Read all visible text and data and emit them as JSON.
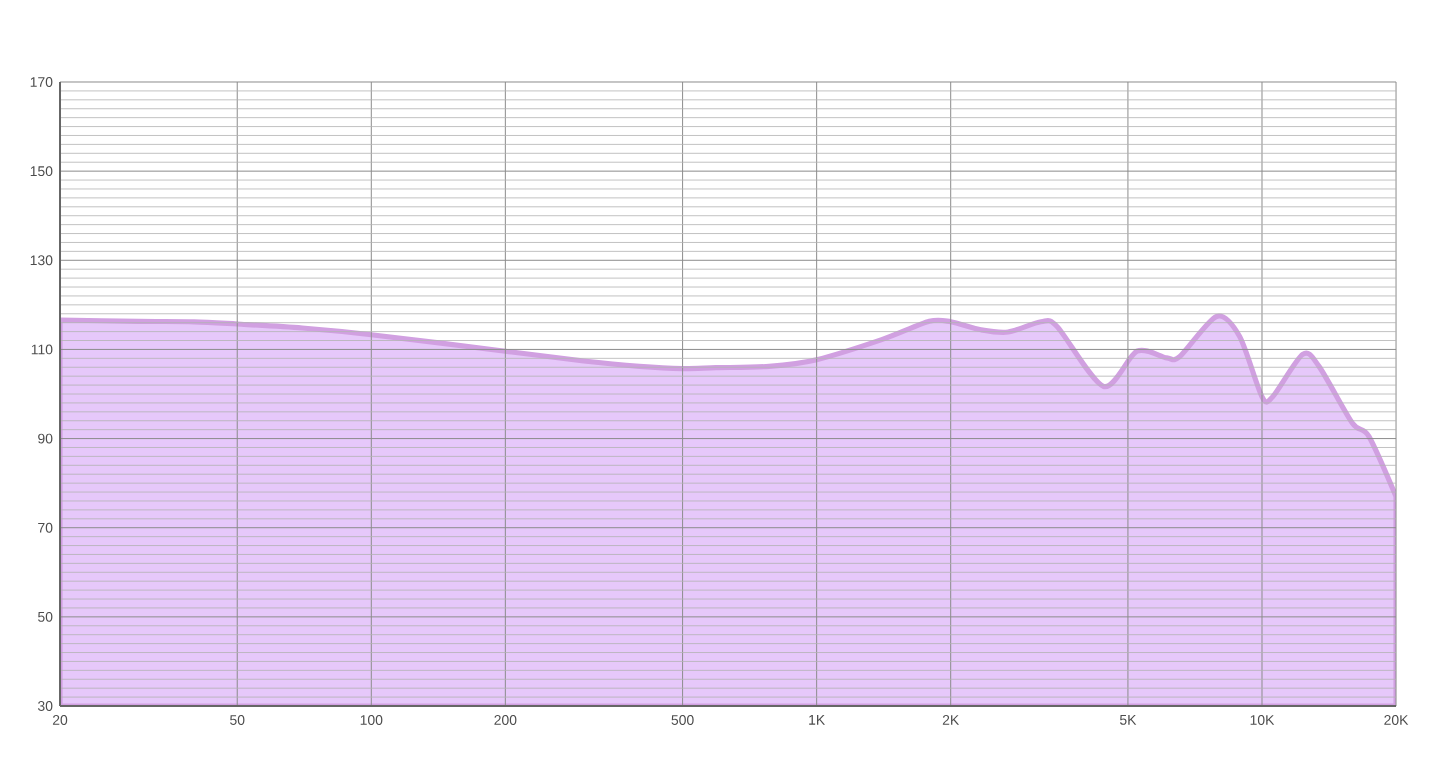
{
  "chart_data": {
    "type": "area",
    "log": "x",
    "x": [
      20,
      30,
      40,
      50,
      70,
      100,
      200,
      300,
      400,
      500,
      594,
      782,
      1000,
      1400,
      1790,
      2000,
      2340,
      2690,
      3190,
      3470,
      4410,
      5240,
      6110,
      6540,
      7910,
      8910,
      10000,
      10570,
      12340,
      13430,
      15950,
      17380,
      20000
    ],
    "series": [
      {
        "color": "#e6c8fa",
        "values": [
          116.6,
          116.3,
          116.2,
          115.7,
          114.8,
          113.3,
          109.6,
          107.4,
          106.2,
          105.7,
          105.9,
          106.2,
          107.7,
          112.2,
          116.3,
          116.2,
          114.4,
          113.9,
          116.2,
          115.1,
          101.7,
          109.6,
          108.1,
          108.4,
          117.4,
          112.9,
          99.4,
          99.4,
          108.9,
          106.2,
          93.5,
          90.5,
          77.0
        ]
      }
    ],
    "xlim": [
      20,
      20000
    ],
    "ylim": [
      30,
      170
    ],
    "xticks": [
      20,
      50,
      100,
      200,
      500,
      {
        "value": 1000,
        "label": "1K"
      },
      {
        "value": 2000,
        "label": "2K"
      },
      {
        "value": 5000,
        "label": "5K"
      },
      {
        "value": 10000,
        "label": "10K"
      },
      {
        "value": 20000,
        "label": "20K"
      }
    ],
    "yticks": [
      30,
      50,
      70,
      90,
      110,
      130,
      150,
      170
    ],
    "grid": true
  }
}
